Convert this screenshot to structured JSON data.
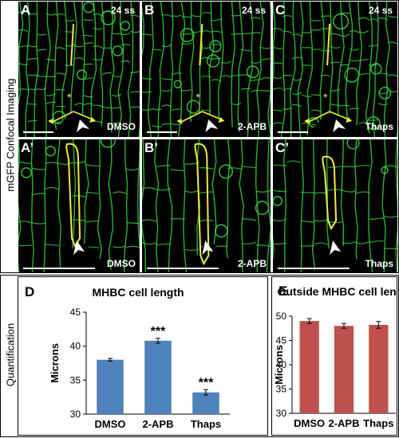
{
  "sections": {
    "imaging_label": "mGFP Confocal Imaging",
    "quant_label": "Quantification"
  },
  "images": [
    {
      "label": "A",
      "stage": "24 ss",
      "condition": ""
    },
    {
      "label": "B",
      "stage": "24 ss",
      "condition": ""
    },
    {
      "label": "C",
      "stage": "24 ss",
      "condition": ""
    },
    {
      "label": "A’",
      "stage": "",
      "condition": "DMSO"
    },
    {
      "label": "B’",
      "stage": "",
      "condition": "2-APB"
    },
    {
      "label": "C’",
      "stage": "",
      "condition": "Thaps"
    }
  ],
  "top_conditions": [
    "DMSO",
    "2-APB",
    "Thaps"
  ],
  "asterisk": "*",
  "colors": {
    "tissue_green": "#2fd63a",
    "cell_outline_yellow": "#f2ef2a",
    "bar_blue": "#4f81bd",
    "bar_red": "#c0504d"
  },
  "chart_data": [
    {
      "panel": "D",
      "type": "bar",
      "title": "MHBC cell length",
      "xlabel": "",
      "ylabel": "Microns",
      "categories": [
        "DMSO",
        "2-APB",
        "Thaps"
      ],
      "values": [
        38.0,
        40.8,
        33.2
      ],
      "errors": [
        0.2,
        0.35,
        0.4
      ],
      "significance": [
        "",
        "***",
        "***"
      ],
      "ylim": [
        30,
        45
      ],
      "yticks": [
        "30",
        "35",
        "40",
        "45"
      ],
      "color": "#4f81bd"
    },
    {
      "panel": "E",
      "type": "bar",
      "title": "Outside MHBC cell length",
      "xlabel": "",
      "ylabel": "Microns",
      "categories": [
        "DMSO",
        "2-APB",
        "Thaps"
      ],
      "values": [
        49.0,
        48.0,
        48.2
      ],
      "errors": [
        0.5,
        0.5,
        0.7
      ],
      "significance": [
        "",
        "",
        ""
      ],
      "ylim": [
        30,
        50
      ],
      "yticks": [
        "30",
        "35",
        "40",
        "45",
        "50"
      ],
      "color": "#c0504d"
    }
  ]
}
